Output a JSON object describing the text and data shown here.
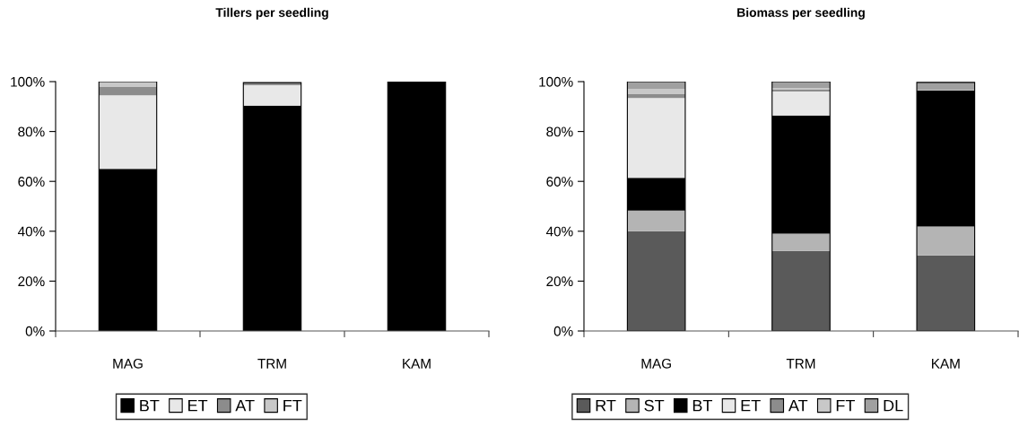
{
  "chart_data": [
    {
      "type": "bar",
      "stacked": true,
      "title": "Tillers per seedling",
      "categories": [
        "MAG",
        "TRM",
        "KAM"
      ],
      "ylim": [
        0,
        100
      ],
      "yticks": [
        {
          "value": 0,
          "label": "0%"
        },
        {
          "value": 20,
          "label": "20%"
        },
        {
          "value": 40,
          "label": "40%"
        },
        {
          "value": 60,
          "label": "60%"
        },
        {
          "value": 80,
          "label": "80%"
        },
        {
          "value": 100,
          "label": "100%"
        }
      ],
      "grid": false,
      "legend": "bottom",
      "series": [
        {
          "name": "BT",
          "color": "#000000",
          "values": [
            65,
            90.4,
            100
          ]
        },
        {
          "name": "ET",
          "color": "#e8e8e8",
          "values": [
            29.5,
            8.2,
            0
          ]
        },
        {
          "name": "AT",
          "color": "#8c8c8c",
          "values": [
            3.3,
            1,
            0
          ]
        },
        {
          "name": "FT",
          "color": "#c8c8c8",
          "values": [
            2.2,
            null,
            0
          ]
        }
      ]
    },
    {
      "type": "bar",
      "stacked": true,
      "title": "Biomass per seedling",
      "categories": [
        "MAG",
        "TRM",
        "KAM"
      ],
      "ylim": [
        0,
        100
      ],
      "yticks": [
        {
          "value": 0,
          "label": "0%"
        },
        {
          "value": 20,
          "label": "20%"
        },
        {
          "value": 40,
          "label": "40%"
        },
        {
          "value": 60,
          "label": "60%"
        },
        {
          "value": 80,
          "label": "80%"
        },
        {
          "value": 100,
          "label": "100%"
        }
      ],
      "grid": false,
      "legend": "bottom",
      "series": [
        {
          "name": "RT",
          "color": "#5a5a5a",
          "values": [
            40,
            32.1,
            30.3
          ]
        },
        {
          "name": "ST",
          "color": "#b4b4b4",
          "values": [
            8.3,
            6.9,
            11.6
          ]
        },
        {
          "name": "BT",
          "color": "#000000",
          "values": [
            13.1,
            47.4,
            54.5
          ]
        },
        {
          "name": "ET",
          "color": "#e8e8e8",
          "values": [
            32,
            9.6,
            null
          ]
        },
        {
          "name": "AT",
          "color": "#8c8c8c",
          "values": [
            1.6,
            0.8,
            0.2
          ]
        },
        {
          "name": "FT",
          "color": "#c8c8c8",
          "values": [
            2,
            0.7,
            0.2
          ]
        },
        {
          "name": "DL",
          "color": "#a0a0a0",
          "values": [
            3,
            2.5,
            2.9
          ]
        }
      ]
    }
  ]
}
